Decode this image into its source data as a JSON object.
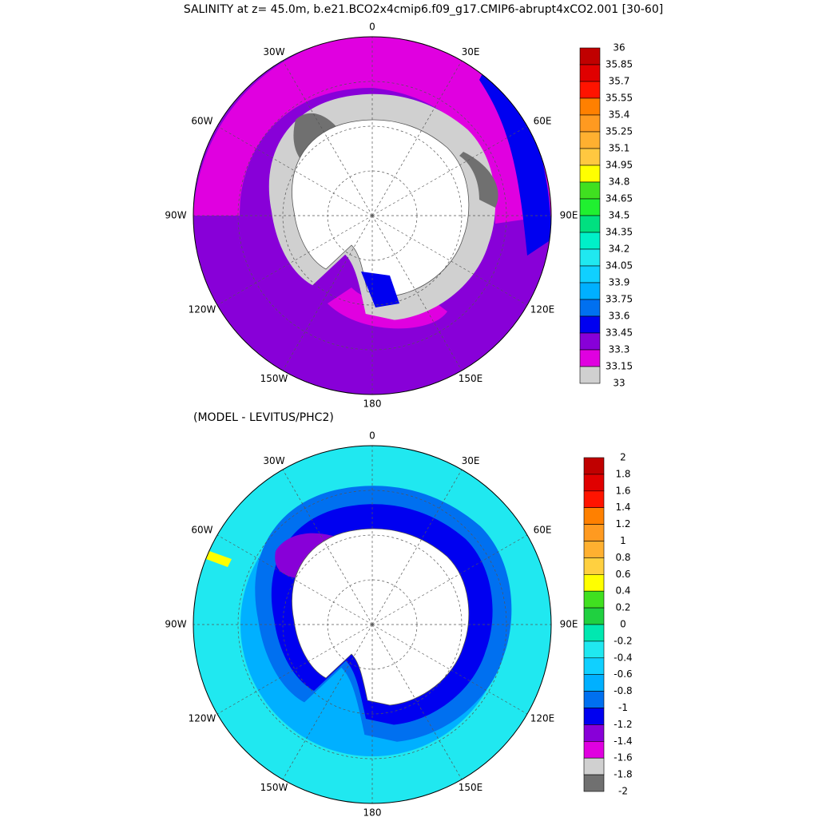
{
  "title": "SALINITY at z=  45.0m, b.e21.BCO2x4cmip6.f09_g17.CMIP6-abrupt4xCO2.001 [30-60]",
  "panels": [
    {
      "longitude_labels": [
        "0",
        "30E",
        "60E",
        "90E",
        "120E",
        "150E",
        "180",
        "150W",
        "120W",
        "90W",
        "60W",
        "30W"
      ],
      "colorbar": {
        "labels": [
          "36",
          "35.85",
          "35.7",
          "35.55",
          "35.4",
          "35.25",
          "35.1",
          "34.95",
          "34.8",
          "34.65",
          "34.5",
          "34.35",
          "34.2",
          "34.05",
          "33.9",
          "33.75",
          "33.6",
          "33.45",
          "33.3",
          "33.15",
          "33"
        ],
        "colors": [
          "#c00000",
          "#e00000",
          "#ff1400",
          "#ff8000",
          "#ff9a20",
          "#ffb030",
          "#ffc840",
          "#ffff00",
          "#40e020",
          "#20f030",
          "#00e080",
          "#00f0c8",
          "#20e8f0",
          "#10d0ff",
          "#00b0ff",
          "#0070f0",
          "#0000f0",
          "#8800d8",
          "#e000e0",
          "#d0d0d0"
        ]
      }
    },
    {
      "subtitle": "(MODEL - LEVITUS/PHC2)",
      "longitude_labels": [
        "0",
        "30E",
        "60E",
        "90E",
        "120E",
        "150E",
        "180",
        "150W",
        "120W",
        "90W",
        "60W",
        "30W"
      ],
      "colorbar": {
        "labels": [
          "2",
          "1.8",
          "1.6",
          "1.4",
          "1.2",
          "1",
          "0.8",
          "0.6",
          "0.4",
          "0.2",
          "0",
          "-0.2",
          "-0.4",
          "-0.6",
          "-0.8",
          "-1",
          "-1.2",
          "-1.4",
          "-1.6",
          "-1.8",
          "-2"
        ],
        "colors": [
          "#c00000",
          "#e00000",
          "#ff1400",
          "#ff8000",
          "#ff9a20",
          "#ffb030",
          "#ffd040",
          "#ffff00",
          "#40e020",
          "#20d040",
          "#00e8b0",
          "#20e8f0",
          "#10d0ff",
          "#00b0ff",
          "#0070f0",
          "#0000f0",
          "#8800d8",
          "#e000e0",
          "#d0d0d0",
          "#707070"
        ]
      }
    }
  ]
}
